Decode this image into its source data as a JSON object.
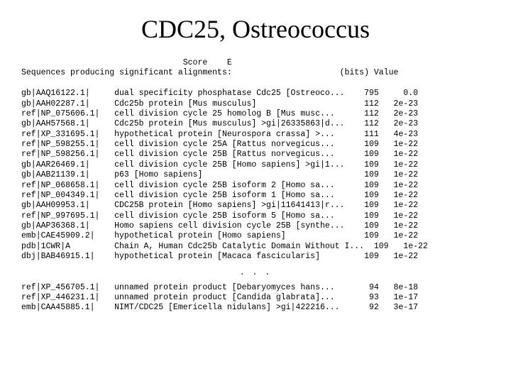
{
  "title": "CDC25, Ostreococcus",
  "header_line1": "                                 Score    E",
  "header_line2": "Sequences producing significant alignments:                      (bits) Value",
  "rows": [
    {
      "acc": "gb|AAQ16122.1|",
      "desc": "dual specificity phosphatase Cdc25 [Ostreoco...",
      "bits": "795",
      "evalue": "0.0"
    },
    {
      "acc": "gb|AAH02287.1|",
      "desc": "Cdc25b protein [Mus musculus]",
      "bits": "112",
      "evalue": "2e-23"
    },
    {
      "acc": "ref|NP_075606.1|",
      "desc": "cell division cycle 25 homolog B [Mus musc...",
      "bits": "112",
      "evalue": "2e-23"
    },
    {
      "acc": "gb|AAH57568.1|",
      "desc": "Cdc25b protein [Mus musculus] >gi|26335863|d...",
      "bits": "112",
      "evalue": "2e-23"
    },
    {
      "acc": "ref|XP_331695.1|",
      "desc": "hypothetical protein [Neurospora crassa] >...",
      "bits": "111",
      "evalue": "4e-23"
    },
    {
      "acc": "ref|NP_598255.1|",
      "desc": "cell division cycle 25A [Rattus norvegicus...",
      "bits": "109",
      "evalue": "1e-22"
    },
    {
      "acc": "ref|NP_598256.1|",
      "desc": "cell division cycle 25B [Rattus norvegicus...",
      "bits": "109",
      "evalue": "1e-22"
    },
    {
      "acc": "gb|AAR26469.1|",
      "desc": "cell division cycle 25B [Homo sapiens] >gi|1...",
      "bits": "109",
      "evalue": "1e-22"
    },
    {
      "acc": "gb|AAB21139.1|",
      "desc": "p63 [Homo sapiens]",
      "bits": "109",
      "evalue": "1e-22"
    },
    {
      "acc": "ref|NP_068658.1|",
      "desc": "cell division cycle 25B isoform 2 [Homo sa...",
      "bits": "109",
      "evalue": "1e-22"
    },
    {
      "acc": "ref|NP_004349.1|",
      "desc": "cell division cycle 25B isoform 1 [Homo sa...",
      "bits": "109",
      "evalue": "1e-22"
    },
    {
      "acc": "gb|AAH09953.1|",
      "desc": "CDC25B protein [Homo sapiens] >gi|11641413|r...",
      "bits": "109",
      "evalue": "1e-22"
    },
    {
      "acc": "ref|NP_997695.1|",
      "desc": "cell division cycle 25B isoform 5 [Homo sa...",
      "bits": "109",
      "evalue": "1e-22"
    },
    {
      "acc": "gb|AAP36368.1|",
      "desc": "Homo sapiens cell division cycle 25B [synthe...",
      "bits": "109",
      "evalue": "1e-22"
    },
    {
      "acc": "emb|CAE45909.2|",
      "desc": "hypothetical protein [Homo sapiens]",
      "bits": "109",
      "evalue": "1e-22"
    },
    {
      "acc": "pdb|1CWR|A",
      "desc": "Chain A, Human Cdc25b Catalytic Domain Without I...",
      "bits": "109",
      "evalue": "1e-22"
    },
    {
      "acc": "dbj|BAB46915.1|",
      "desc": "hypothetical protein [Macaca fascicularis]",
      "bits": "109",
      "evalue": "1e-22"
    }
  ],
  "ellipsis": ". . .",
  "rows_tail": [
    {
      "acc": "ref|XP_456705.1|",
      "desc": "unnamed protein product [Debaryomyces hans...",
      "bits": "94",
      "evalue": "8e-18"
    },
    {
      "acc": "ref|XP_446231.1|",
      "desc": "unnamed protein product [Candida glabrata]...",
      "bits": "93",
      "evalue": "1e-17"
    },
    {
      "acc": "emb|CAA45885.1|",
      "desc": "NIMT/CDC25 [Emericella nidulans] >gi|422216...",
      "bits": "92",
      "evalue": "3e-17"
    }
  ],
  "col_widths": {
    "acc": 18,
    "desc": 49,
    "bits": 5,
    "evalue": 7
  }
}
